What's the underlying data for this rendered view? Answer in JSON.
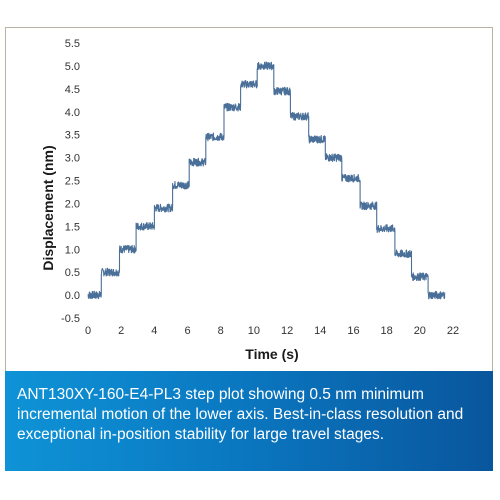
{
  "caption": {
    "line1": "ANT130XY-160-E4-PL3 step plot showing 0.5 nm minimum",
    "line2": "incremental motion of the lower axis. Best-in-class resolution and",
    "line3": "exceptional in-position stability for large travel stages."
  },
  "chart_data": {
    "type": "line",
    "xlabel": "Time (s)",
    "ylabel": "Displacement (nm)",
    "xlim": [
      0,
      22
    ],
    "ylim": [
      -0.5,
      5.5
    ],
    "xticks": [
      0,
      2,
      4,
      6,
      8,
      10,
      12,
      14,
      16,
      18,
      20,
      22
    ],
    "yticks": [
      -0.5,
      0.0,
      0.5,
      1.0,
      1.5,
      2.0,
      2.5,
      3.0,
      3.5,
      4.0,
      4.5,
      5.0,
      5.5
    ],
    "ytick_labels": [
      "-0.5",
      "0.0",
      "0.5",
      "1.0",
      "1.5",
      "2.0",
      "2.5",
      "3.0",
      "3.5",
      "4.0",
      "4.5",
      "5.0",
      "5.5"
    ],
    "grid": false,
    "line_color": "#4a6f98",
    "series": [
      {
        "steps": [
          {
            "x_start": 0.0,
            "x_end": 0.8,
            "y": 0.0
          },
          {
            "x_start": 0.8,
            "x_end": 1.9,
            "y": 0.5
          },
          {
            "x_start": 1.9,
            "x_end": 2.9,
            "y": 1.0
          },
          {
            "x_start": 2.9,
            "x_end": 4.0,
            "y": 1.5
          },
          {
            "x_start": 4.0,
            "x_end": 5.1,
            "y": 1.9
          },
          {
            "x_start": 5.1,
            "x_end": 6.1,
            "y": 2.4
          },
          {
            "x_start": 6.1,
            "x_end": 7.1,
            "y": 2.9
          },
          {
            "x_start": 7.1,
            "x_end": 8.2,
            "y": 3.45
          },
          {
            "x_start": 8.2,
            "x_end": 9.2,
            "y": 4.1
          },
          {
            "x_start": 9.2,
            "x_end": 10.2,
            "y": 4.6
          },
          {
            "x_start": 10.2,
            "x_end": 11.2,
            "y": 5.0
          },
          {
            "x_start": 11.2,
            "x_end": 12.2,
            "y": 4.45
          },
          {
            "x_start": 12.2,
            "x_end": 13.3,
            "y": 3.9
          },
          {
            "x_start": 13.3,
            "x_end": 14.3,
            "y": 3.4
          },
          {
            "x_start": 14.3,
            "x_end": 15.3,
            "y": 3.0
          },
          {
            "x_start": 15.3,
            "x_end": 16.4,
            "y": 2.55
          },
          {
            "x_start": 16.4,
            "x_end": 17.4,
            "y": 1.95
          },
          {
            "x_start": 17.4,
            "x_end": 18.5,
            "y": 1.45
          },
          {
            "x_start": 18.5,
            "x_end": 19.5,
            "y": 0.9
          },
          {
            "x_start": 19.5,
            "x_end": 20.5,
            "y": 0.4
          },
          {
            "x_start": 20.5,
            "x_end": 21.5,
            "y": 0.0
          }
        ]
      }
    ]
  }
}
